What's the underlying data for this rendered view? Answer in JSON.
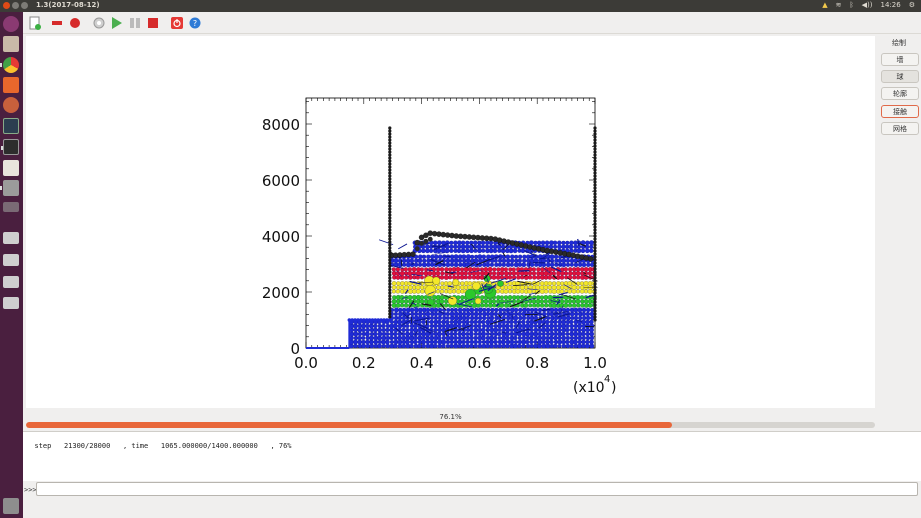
{
  "window": {
    "title": "1.3(2017-08-12)"
  },
  "system_tray": {
    "volume": "◀))",
    "clock": "14:26"
  },
  "launcher": {
    "items": [
      "dash",
      "files",
      "chrome",
      "software-center",
      "settings",
      "system-monitor",
      "terminal",
      "text-editor",
      "disks",
      "dvd",
      "drive-1",
      "drive-2",
      "drive-3",
      "drive-4",
      "trash"
    ]
  },
  "toolbar": {
    "items": [
      "new",
      "stop",
      "record",
      "settings",
      "run",
      "pause",
      "halt",
      "power",
      "help"
    ]
  },
  "side_panel": {
    "title": "绘制",
    "buttons": [
      {
        "label": "墙",
        "state": "normal"
      },
      {
        "label": "球",
        "state": "active"
      },
      {
        "label": "轮廓",
        "state": "normal"
      },
      {
        "label": "接触",
        "state": "focus"
      },
      {
        "label": "网格",
        "state": "normal"
      }
    ]
  },
  "chart_data": {
    "type": "scatter",
    "x_ticks": [
      "0.0",
      "0.2",
      "0.4",
      "0.6",
      "0.8",
      "1.0"
    ],
    "y_ticks": [
      "0",
      "2000",
      "4000",
      "6000",
      "8000"
    ],
    "x_multiplier": "(x10",
    "x_multiplier_exp": "4",
    "x_multiplier_close": ")",
    "xlim": [
      0,
      10000
    ],
    "ylim": [
      0,
      9000
    ],
    "walls": {
      "floor": [
        [
          0,
          0
        ],
        [
          1500,
          0
        ],
        [
          1500,
          1000
        ],
        [
          2900,
          1000
        ]
      ],
      "left_wall": [
        [
          2900,
          1000
        ],
        [
          2900,
          7900
        ]
      ],
      "right_wall": [
        [
          10000,
          1000
        ],
        [
          10000,
          7900
        ]
      ]
    },
    "layers": [
      {
        "color": "#1f2bd6",
        "bottom": 0,
        "top": 1000,
        "x0": 1500,
        "x1": 10000
      },
      {
        "color": "#1f2bd6",
        "bottom": 1000,
        "top": 1450,
        "x0": 2900,
        "x1": 10000
      },
      {
        "color": "#2bc82b",
        "bottom": 1450,
        "top": 1950,
        "x0": 2900,
        "x1": 10000
      },
      {
        "color": "#f3e829",
        "bottom": 1950,
        "top": 2450,
        "x0": 2900,
        "x1": 10000
      },
      {
        "color": "#e2103a",
        "bottom": 2450,
        "top": 2900,
        "x0": 2900,
        "x1": 10000
      },
      {
        "color": "#1f2bd6",
        "bottom": 2900,
        "top": 3400,
        "x0": 2900,
        "x1": 10000
      },
      {
        "color": "#1f2bd6",
        "bottom": 3400,
        "top": 3900,
        "x0": 3700,
        "x1": 10000
      }
    ],
    "top_layer": {
      "color": "#2a2a2a",
      "profile": [
        [
          2900,
          3300
        ],
        [
          3700,
          3350
        ],
        [
          3900,
          3900
        ],
        [
          4300,
          4100
        ],
        [
          5200,
          4000
        ],
        [
          6500,
          3900
        ],
        [
          8000,
          3550
        ],
        [
          9300,
          3300
        ],
        [
          10000,
          3150
        ]
      ]
    }
  },
  "progress": {
    "value": 76.1,
    "label": "76.1%"
  },
  "output": {
    "line": "step   21300/28000   , time   1065.000000/1400.000000   , 76%"
  },
  "console": {
    "prompt": ">>>",
    "value": ""
  },
  "colors": {
    "launcher": "#4a1f3f",
    "accent": "#e8673a"
  }
}
